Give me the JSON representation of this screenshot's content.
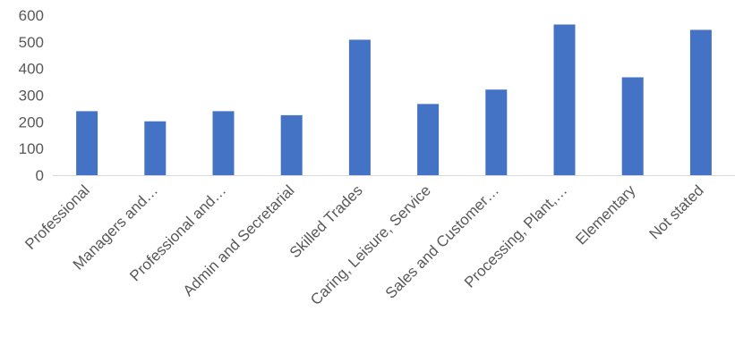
{
  "chart_data": {
    "type": "bar",
    "categories": [
      "Professional",
      "Managers and…",
      "Professional and…",
      "Admin and Secretarial",
      "Skilled Trades",
      "Caring, Leisure, Service",
      "Sales and Customer…",
      "Processing, Plant,…",
      "Elementary",
      "Not stated"
    ],
    "values": [
      240,
      202,
      240,
      225,
      508,
      267,
      321,
      565,
      367,
      545
    ],
    "ylim": [
      0,
      600
    ],
    "yticks": [
      "0",
      "100",
      "200",
      "300",
      "400",
      "500",
      "600"
    ],
    "grid": false,
    "legend": "none",
    "bar_color": "#4472C4",
    "axis_color": "#D9D9D9",
    "text_color": "#595959"
  }
}
